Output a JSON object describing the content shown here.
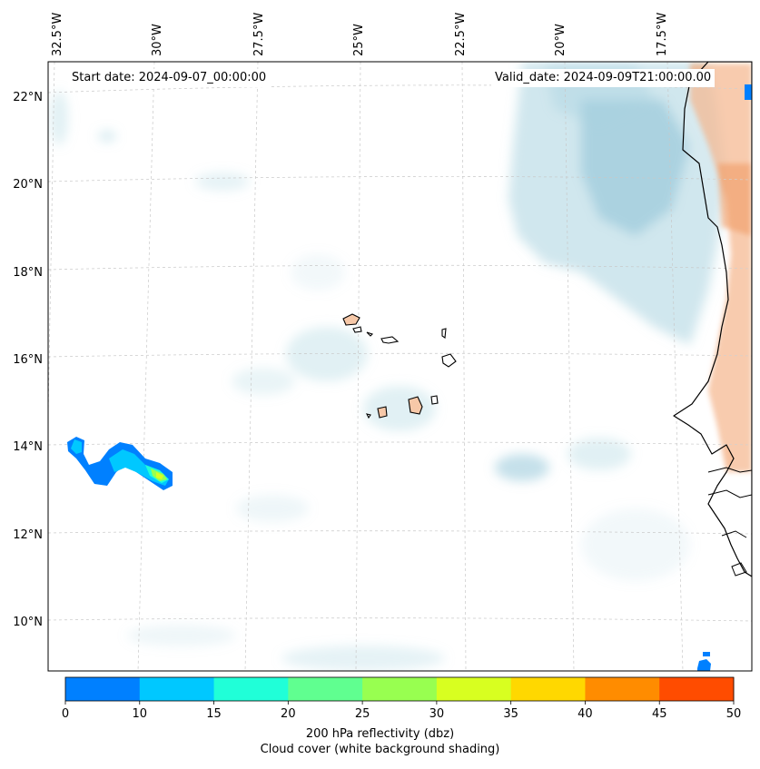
{
  "header": {
    "start_date": "Start date: 2024-09-07_00:00:00",
    "valid_date": "Valid_date: 2024-09-09T21:00:00.00"
  },
  "lon_labels": [
    "32.5°W",
    "30°W",
    "27.5°W",
    "25°W",
    "22.5°W",
    "20°W",
    "17.5°W"
  ],
  "lat_labels": [
    "22°N",
    "20°N",
    "18°N",
    "16°N",
    "14°N",
    "12°N",
    "10°N"
  ],
  "colorbar": {
    "ticks": [
      "0",
      "10",
      "15",
      "20",
      "25",
      "30",
      "35",
      "40",
      "45",
      "50"
    ],
    "colors": [
      "#0080ff",
      "#00c8ff",
      "#20ffd8",
      "#60ff90",
      "#98ff50",
      "#d8ff20",
      "#ffd800",
      "#ff8c00",
      "#ff4c00"
    ],
    "label_line1": "200 hPa reflectivity (dbz)",
    "label_line2": "Cloud cover (white background shading)"
  },
  "colors": {
    "cloud": "#a9d3e0",
    "land_fill": "#f6c8a8",
    "coast": "#000000",
    "grid": "#c8c8c8"
  }
}
